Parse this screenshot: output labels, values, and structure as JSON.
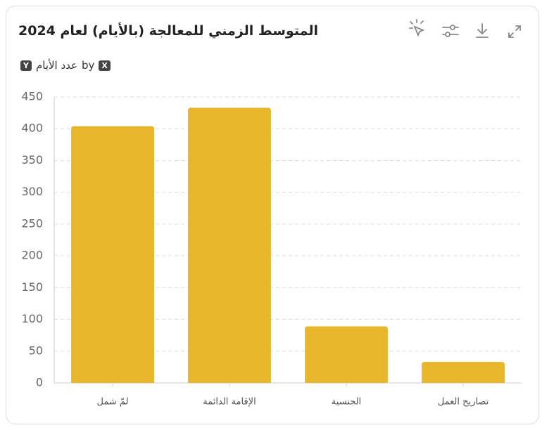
{
  "chart_data": {
    "type": "bar",
    "title": "المتوسط الزمني للمعالجة (بالأيام) لعام 2024",
    "subtitle": {
      "y_badge": "Y",
      "y_label": "عدد الأيام",
      "by": "by",
      "x_badge": "X"
    },
    "categories": [
      "لمّ شمل",
      "الإقامة الدائمة",
      "الجنسية",
      "تصاريح العمل"
    ],
    "values": [
      404,
      433,
      89,
      33
    ],
    "color": "#e8b62b",
    "ylim": [
      0,
      450
    ],
    "yticks": [
      0,
      50,
      100,
      150,
      200,
      250,
      300,
      350,
      400,
      450
    ],
    "grid": true
  }
}
